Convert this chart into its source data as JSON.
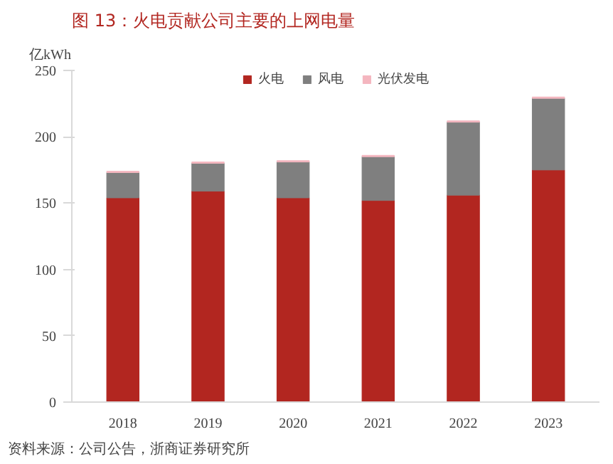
{
  "chart_data": {
    "type": "bar",
    "title": "图 13：火电贡献公司主要的上网电量",
    "ylabel": "亿kWh",
    "categories": [
      "2018",
      "2019",
      "2020",
      "2021",
      "2022",
      "2023"
    ],
    "stacked": true,
    "series": [
      {
        "name": "火电",
        "color": "#b22620",
        "values": [
          154,
          159,
          154,
          152,
          156,
          175
        ]
      },
      {
        "name": "风电",
        "color": "#7f7f7f",
        "values": [
          19,
          21,
          27,
          33,
          55,
          54
        ]
      },
      {
        "name": "光伏发电",
        "color": "#f4b6bf",
        "values": [
          1,
          1,
          1,
          1,
          1,
          1
        ]
      }
    ],
    "ylim": [
      0,
      250
    ],
    "yticks": [
      0,
      50,
      100,
      150,
      200,
      250
    ],
    "grid": false,
    "legend": "top",
    "annotations": [
      "资料来源：公司公告，浙商证券研究所"
    ]
  }
}
